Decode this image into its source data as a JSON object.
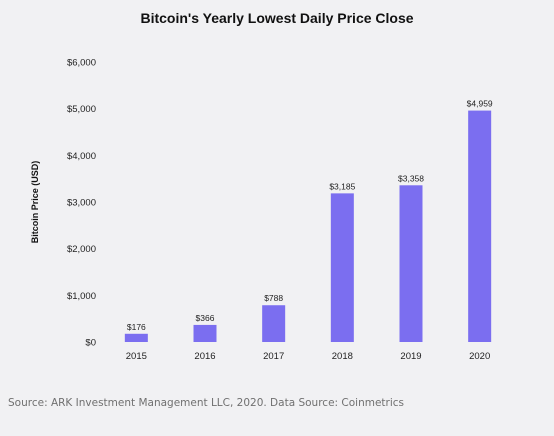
{
  "chart_data": {
    "type": "bar",
    "title": "Bitcoin's Yearly Lowest Daily Price Close",
    "xlabel": "",
    "ylabel": "Bitcoin Price (USD)",
    "categories": [
      "2015",
      "2016",
      "2017",
      "2018",
      "2019",
      "2020"
    ],
    "values": [
      176,
      366,
      788,
      3185,
      3358,
      4959
    ],
    "data_labels": [
      "$176",
      "$366",
      "$788",
      "$3,185",
      "$3,358",
      "$4,959"
    ],
    "ylim": [
      0,
      6000
    ],
    "yticks": [
      0,
      1000,
      2000,
      3000,
      4000,
      5000,
      6000
    ],
    "ytick_labels": [
      "$0",
      "$1,000",
      "$2,000",
      "$3,000",
      "$4,000",
      "$5,000",
      "$6,000"
    ],
    "grid": false,
    "legend": "none",
    "bar_color": "#7b6ef0"
  },
  "footer": {
    "source": "Source: ARK Investment Management LLC, 2020. Data Source: Coinmetrics"
  }
}
